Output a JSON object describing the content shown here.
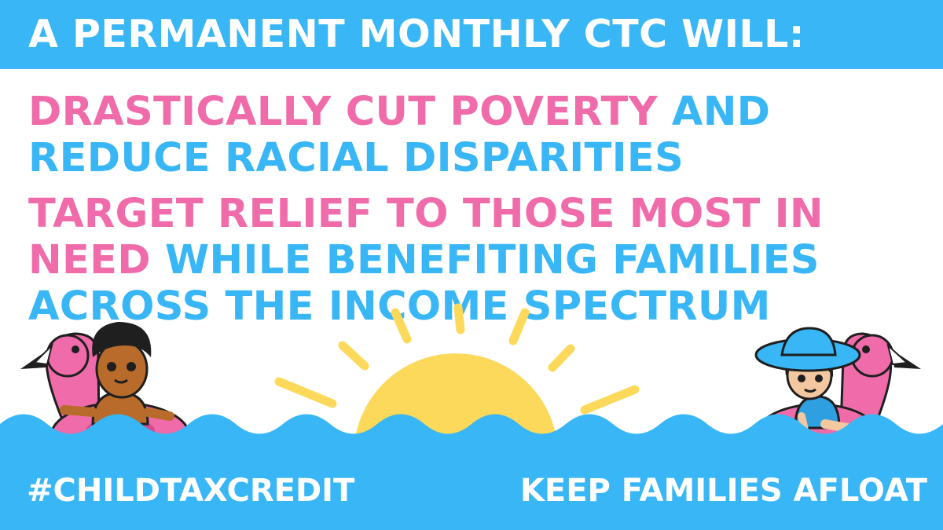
{
  "header": {
    "title": "A PERMANENT MONTHLY CTC WILL:"
  },
  "points": [
    {
      "highlight": "DRASTICALLY CUT POVERTY",
      "rest": " AND REDUCE RACIAL DISPARITIES"
    },
    {
      "highlight": "TARGET RELIEF TO THOSE MOST IN NEED",
      "rest": " WHILE BENEFITING FAMILIES ACROSS THE INCOME SPECTRUM"
    }
  ],
  "footer": {
    "hashtag": "#CHILDTAXCREDIT",
    "slogan": "KEEP FAMILIES AFLOAT"
  },
  "colors": {
    "brand_blue": "#38b6f5",
    "brand_pink": "#f06baa",
    "sun_yellow": "#fcd95b",
    "background": "#ffffff"
  },
  "illustration": {
    "left": "child-on-flamingo-float-icon",
    "center": "setting-sun-icon",
    "right": "child-with-sunhat-on-flamingo-float-icon",
    "water": "wave-icon"
  }
}
